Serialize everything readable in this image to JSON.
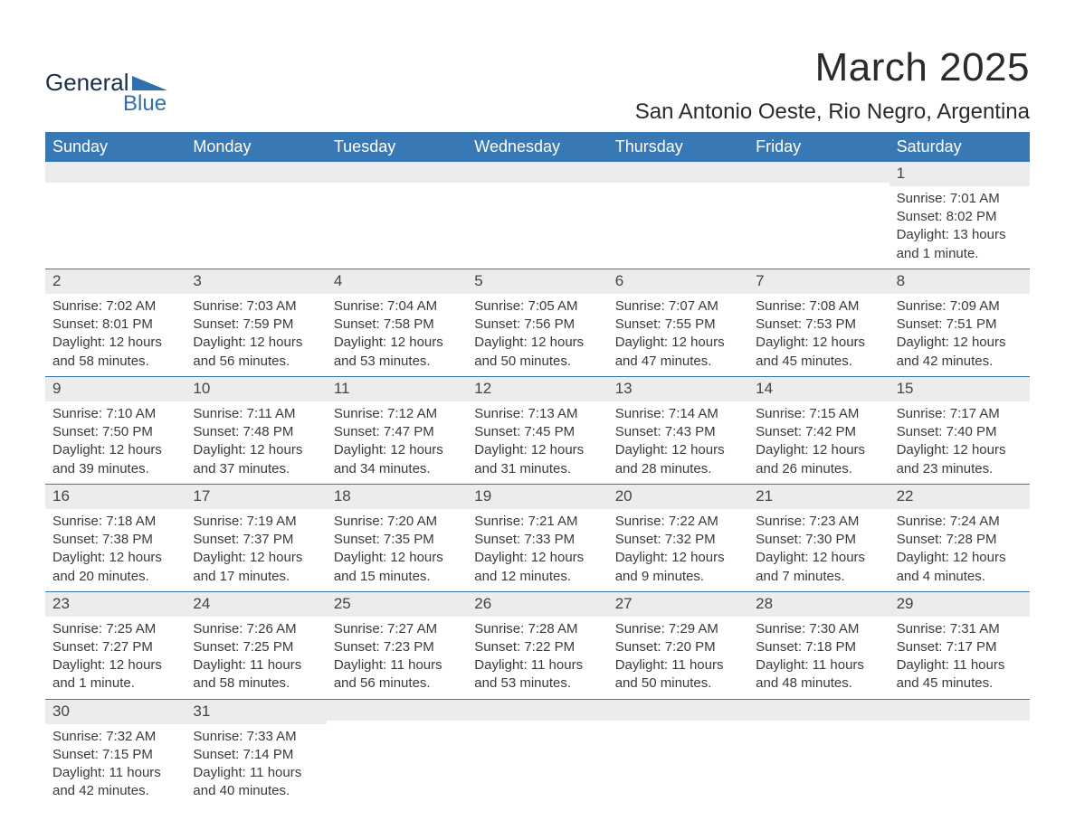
{
  "logo": {
    "text_general": "General",
    "text_blue": "Blue",
    "color_general": "#18304a",
    "color_blue": "#2f6fae",
    "shape_color": "#2f6fae"
  },
  "header": {
    "title": "March 2025",
    "subtitle": "San Antonio Oeste, Rio Negro, Argentina"
  },
  "colors": {
    "header_bg": "#3879b5",
    "header_text": "#ffffff",
    "daynum_bg": "#ececec",
    "row_border": "#3879b5",
    "body_text": "#3a3a3a",
    "page_bg": "#ffffff"
  },
  "days_of_week": [
    "Sunday",
    "Monday",
    "Tuesday",
    "Wednesday",
    "Thursday",
    "Friday",
    "Saturday"
  ],
  "weeks": [
    [
      {
        "day": "",
        "sunrise": "",
        "sunset": "",
        "daylight1": "",
        "daylight2": ""
      },
      {
        "day": "",
        "sunrise": "",
        "sunset": "",
        "daylight1": "",
        "daylight2": ""
      },
      {
        "day": "",
        "sunrise": "",
        "sunset": "",
        "daylight1": "",
        "daylight2": ""
      },
      {
        "day": "",
        "sunrise": "",
        "sunset": "",
        "daylight1": "",
        "daylight2": ""
      },
      {
        "day": "",
        "sunrise": "",
        "sunset": "",
        "daylight1": "",
        "daylight2": ""
      },
      {
        "day": "",
        "sunrise": "",
        "sunset": "",
        "daylight1": "",
        "daylight2": ""
      },
      {
        "day": "1",
        "sunrise": "Sunrise: 7:01 AM",
        "sunset": "Sunset: 8:02 PM",
        "daylight1": "Daylight: 13 hours",
        "daylight2": "and 1 minute."
      }
    ],
    [
      {
        "day": "2",
        "sunrise": "Sunrise: 7:02 AM",
        "sunset": "Sunset: 8:01 PM",
        "daylight1": "Daylight: 12 hours",
        "daylight2": "and 58 minutes."
      },
      {
        "day": "3",
        "sunrise": "Sunrise: 7:03 AM",
        "sunset": "Sunset: 7:59 PM",
        "daylight1": "Daylight: 12 hours",
        "daylight2": "and 56 minutes."
      },
      {
        "day": "4",
        "sunrise": "Sunrise: 7:04 AM",
        "sunset": "Sunset: 7:58 PM",
        "daylight1": "Daylight: 12 hours",
        "daylight2": "and 53 minutes."
      },
      {
        "day": "5",
        "sunrise": "Sunrise: 7:05 AM",
        "sunset": "Sunset: 7:56 PM",
        "daylight1": "Daylight: 12 hours",
        "daylight2": "and 50 minutes."
      },
      {
        "day": "6",
        "sunrise": "Sunrise: 7:07 AM",
        "sunset": "Sunset: 7:55 PM",
        "daylight1": "Daylight: 12 hours",
        "daylight2": "and 47 minutes."
      },
      {
        "day": "7",
        "sunrise": "Sunrise: 7:08 AM",
        "sunset": "Sunset: 7:53 PM",
        "daylight1": "Daylight: 12 hours",
        "daylight2": "and 45 minutes."
      },
      {
        "day": "8",
        "sunrise": "Sunrise: 7:09 AM",
        "sunset": "Sunset: 7:51 PM",
        "daylight1": "Daylight: 12 hours",
        "daylight2": "and 42 minutes."
      }
    ],
    [
      {
        "day": "9",
        "sunrise": "Sunrise: 7:10 AM",
        "sunset": "Sunset: 7:50 PM",
        "daylight1": "Daylight: 12 hours",
        "daylight2": "and 39 minutes."
      },
      {
        "day": "10",
        "sunrise": "Sunrise: 7:11 AM",
        "sunset": "Sunset: 7:48 PM",
        "daylight1": "Daylight: 12 hours",
        "daylight2": "and 37 minutes."
      },
      {
        "day": "11",
        "sunrise": "Sunrise: 7:12 AM",
        "sunset": "Sunset: 7:47 PM",
        "daylight1": "Daylight: 12 hours",
        "daylight2": "and 34 minutes."
      },
      {
        "day": "12",
        "sunrise": "Sunrise: 7:13 AM",
        "sunset": "Sunset: 7:45 PM",
        "daylight1": "Daylight: 12 hours",
        "daylight2": "and 31 minutes."
      },
      {
        "day": "13",
        "sunrise": "Sunrise: 7:14 AM",
        "sunset": "Sunset: 7:43 PM",
        "daylight1": "Daylight: 12 hours",
        "daylight2": "and 28 minutes."
      },
      {
        "day": "14",
        "sunrise": "Sunrise: 7:15 AM",
        "sunset": "Sunset: 7:42 PM",
        "daylight1": "Daylight: 12 hours",
        "daylight2": "and 26 minutes."
      },
      {
        "day": "15",
        "sunrise": "Sunrise: 7:17 AM",
        "sunset": "Sunset: 7:40 PM",
        "daylight1": "Daylight: 12 hours",
        "daylight2": "and 23 minutes."
      }
    ],
    [
      {
        "day": "16",
        "sunrise": "Sunrise: 7:18 AM",
        "sunset": "Sunset: 7:38 PM",
        "daylight1": "Daylight: 12 hours",
        "daylight2": "and 20 minutes."
      },
      {
        "day": "17",
        "sunrise": "Sunrise: 7:19 AM",
        "sunset": "Sunset: 7:37 PM",
        "daylight1": "Daylight: 12 hours",
        "daylight2": "and 17 minutes."
      },
      {
        "day": "18",
        "sunrise": "Sunrise: 7:20 AM",
        "sunset": "Sunset: 7:35 PM",
        "daylight1": "Daylight: 12 hours",
        "daylight2": "and 15 minutes."
      },
      {
        "day": "19",
        "sunrise": "Sunrise: 7:21 AM",
        "sunset": "Sunset: 7:33 PM",
        "daylight1": "Daylight: 12 hours",
        "daylight2": "and 12 minutes."
      },
      {
        "day": "20",
        "sunrise": "Sunrise: 7:22 AM",
        "sunset": "Sunset: 7:32 PM",
        "daylight1": "Daylight: 12 hours",
        "daylight2": "and 9 minutes."
      },
      {
        "day": "21",
        "sunrise": "Sunrise: 7:23 AM",
        "sunset": "Sunset: 7:30 PM",
        "daylight1": "Daylight: 12 hours",
        "daylight2": "and 7 minutes."
      },
      {
        "day": "22",
        "sunrise": "Sunrise: 7:24 AM",
        "sunset": "Sunset: 7:28 PM",
        "daylight1": "Daylight: 12 hours",
        "daylight2": "and 4 minutes."
      }
    ],
    [
      {
        "day": "23",
        "sunrise": "Sunrise: 7:25 AM",
        "sunset": "Sunset: 7:27 PM",
        "daylight1": "Daylight: 12 hours",
        "daylight2": "and 1 minute."
      },
      {
        "day": "24",
        "sunrise": "Sunrise: 7:26 AM",
        "sunset": "Sunset: 7:25 PM",
        "daylight1": "Daylight: 11 hours",
        "daylight2": "and 58 minutes."
      },
      {
        "day": "25",
        "sunrise": "Sunrise: 7:27 AM",
        "sunset": "Sunset: 7:23 PM",
        "daylight1": "Daylight: 11 hours",
        "daylight2": "and 56 minutes."
      },
      {
        "day": "26",
        "sunrise": "Sunrise: 7:28 AM",
        "sunset": "Sunset: 7:22 PM",
        "daylight1": "Daylight: 11 hours",
        "daylight2": "and 53 minutes."
      },
      {
        "day": "27",
        "sunrise": "Sunrise: 7:29 AM",
        "sunset": "Sunset: 7:20 PM",
        "daylight1": "Daylight: 11 hours",
        "daylight2": "and 50 minutes."
      },
      {
        "day": "28",
        "sunrise": "Sunrise: 7:30 AM",
        "sunset": "Sunset: 7:18 PM",
        "daylight1": "Daylight: 11 hours",
        "daylight2": "and 48 minutes."
      },
      {
        "day": "29",
        "sunrise": "Sunrise: 7:31 AM",
        "sunset": "Sunset: 7:17 PM",
        "daylight1": "Daylight: 11 hours",
        "daylight2": "and 45 minutes."
      }
    ],
    [
      {
        "day": "30",
        "sunrise": "Sunrise: 7:32 AM",
        "sunset": "Sunset: 7:15 PM",
        "daylight1": "Daylight: 11 hours",
        "daylight2": "and 42 minutes."
      },
      {
        "day": "31",
        "sunrise": "Sunrise: 7:33 AM",
        "sunset": "Sunset: 7:14 PM",
        "daylight1": "Daylight: 11 hours",
        "daylight2": "and 40 minutes."
      },
      {
        "day": "",
        "sunrise": "",
        "sunset": "",
        "daylight1": "",
        "daylight2": ""
      },
      {
        "day": "",
        "sunrise": "",
        "sunset": "",
        "daylight1": "",
        "daylight2": ""
      },
      {
        "day": "",
        "sunrise": "",
        "sunset": "",
        "daylight1": "",
        "daylight2": ""
      },
      {
        "day": "",
        "sunrise": "",
        "sunset": "",
        "daylight1": "",
        "daylight2": ""
      },
      {
        "day": "",
        "sunrise": "",
        "sunset": "",
        "daylight1": "",
        "daylight2": ""
      }
    ]
  ]
}
